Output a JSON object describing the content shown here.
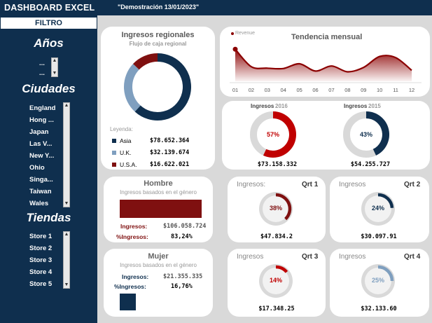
{
  "header": {
    "title": "DASHBOARD EXCEL",
    "demo_label": "\"Demostración 13/01/2023\""
  },
  "sidebar": {
    "filter_label": "FILTRO",
    "years_title": "Años",
    "years_items": [
      "...",
      "..."
    ],
    "cities_title": "Ciudades",
    "cities_items": [
      "England",
      "Hong ...",
      "Japan",
      "Las V...",
      "New Y...",
      "Ohio",
      "Singa...",
      "Taiwan",
      "Wales"
    ],
    "stores_title": "Tiendas",
    "stores_items": [
      "Store 1",
      "Store 2",
      "Store 3",
      "Store 4",
      "Store 5"
    ]
  },
  "regional": {
    "title": "Ingresos regionales",
    "subtitle": "Flujo de caja regional",
    "legend_title": "Leyenda:",
    "items": [
      {
        "name": "Asia",
        "value": "$78.652.364",
        "color": "#0f2f4e"
      },
      {
        "name": "U.K.",
        "value": "$32.139.674",
        "color": "#7f9fbf"
      },
      {
        "name": "U.S.A.",
        "value": "$16.622.021",
        "color": "#7f1010"
      }
    ],
    "shares": [
      0.618,
      0.252,
      0.13
    ]
  },
  "trend": {
    "title": "Tendencia mensual",
    "legend": "Revenue",
    "months": [
      "01",
      "02",
      "03",
      "04",
      "05",
      "06",
      "07",
      "08",
      "09",
      "10",
      "11",
      "12"
    ],
    "values": [
      88,
      40,
      36,
      35,
      48,
      28,
      42,
      26,
      38,
      68,
      65,
      30
    ],
    "color": "#8b0000"
  },
  "yearly": [
    {
      "label": "Ingresos",
      "year": "2016",
      "pct_label": "57%",
      "pct": 0.57,
      "value": "$73.158.332",
      "color": "#c00000"
    },
    {
      "label": "Ingresos",
      "year": "2015",
      "pct_label": "43%",
      "pct": 0.43,
      "value": "$54.255.727",
      "color": "#0f2f4e"
    }
  ],
  "hombre": {
    "title": "Hombre",
    "subtitle": "Ingresos basados en el género",
    "ingresos_label": "Ingresos:",
    "ingresos_value": "$106.058.724",
    "pct_label": "%Ingresos:",
    "pct_value": "83,24%",
    "share": 0.8324,
    "color": "#7f1010"
  },
  "mujer": {
    "title": "Mujer",
    "subtitle": "Ingresos basados en el género",
    "ingresos_label": "Ingresos:",
    "ingresos_value": "$21.355.335",
    "pct_label": "%Ingresos:",
    "pct_value": "16,76%",
    "share": 0.1676,
    "color": "#0f2f4e"
  },
  "quarters": [
    {
      "label": "Ingresos:",
      "name": "Qrt 1",
      "pct_label": "38%",
      "pct": 0.38,
      "value": "$47.834.2",
      "color": "#7f1010"
    },
    {
      "label": "Ingresos",
      "name": "Qrt 2",
      "pct_label": "24%",
      "pct": 0.24,
      "value": "$30.097.91",
      "color": "#0f2f4e"
    },
    {
      "label": "Ingresos",
      "name": "Qrt 3",
      "pct_label": "14%",
      "pct": 0.14,
      "value": "$17.348.25",
      "color": "#c00000"
    },
    {
      "label": "Ingresos",
      "name": "Qrt 4",
      "pct_label": "25%",
      "pct": 0.25,
      "value": "$32.133.60",
      "color": "#7f9fbf"
    }
  ]
}
